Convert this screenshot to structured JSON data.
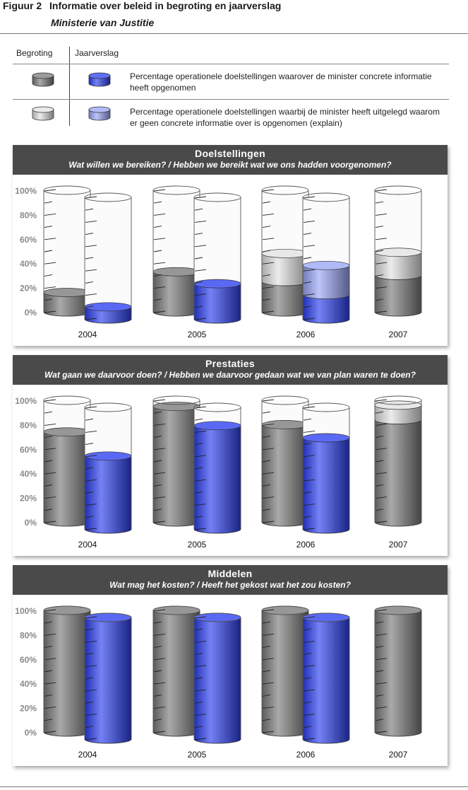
{
  "figure": {
    "number": "Figuur 2",
    "title": "Informatie over beleid in begroting en jaarverslag",
    "subtitle": "Ministerie van Justitie"
  },
  "legend": {
    "col_begroting": "Begroting",
    "col_jaarverslag": "Jaarverslag",
    "row1_text": "Percentage operationele doelstellingen waarover de minister concrete informatie heeft opgenomen",
    "row2_text": "Percentage operationele doelstellingen waarbij de minister heeft uitgelegd waarom er geen concrete informatie over is opgenomen (explain)"
  },
  "colors": {
    "begroting_concrete": "#7a7a7a",
    "begroting_explain": "#e2e2e2",
    "jaarverslag_concrete": "#2b3ff0",
    "jaarverslag_explain": "#9aa6f6",
    "header_bg": "#4a4a4a"
  },
  "chart_data": [
    {
      "type": "bar",
      "title": "Doelstellingen",
      "subtitle": "Wat willen we bereiken? / Hebben we bereikt wat we ons hadden voorgenomen?",
      "categories": [
        "2004",
        "2005",
        "2006",
        "2007"
      ],
      "yticks": [
        "0%",
        "20%",
        "40%",
        "60%",
        "80%",
        "100%"
      ],
      "ylim": [
        0,
        100
      ],
      "series": [
        {
          "name": "Begroting concreet",
          "values": [
            16,
            33,
            25,
            30
          ]
        },
        {
          "name": "Begroting explain",
          "values": [
            0,
            0,
            23,
            19
          ]
        },
        {
          "name": "Jaarverslag concreet",
          "values": [
            10,
            29,
            20,
            null
          ]
        },
        {
          "name": "Jaarverslag explain",
          "values": [
            0,
            0,
            24,
            null
          ]
        }
      ]
    },
    {
      "type": "bar",
      "title": "Prestaties",
      "subtitle": "Wat gaan we daarvoor doen? / Hebben we daarvoor gedaan wat we van plan waren te doen?",
      "categories": [
        "2004",
        "2005",
        "2006",
        "2007"
      ],
      "yticks": [
        "0%",
        "20%",
        "40%",
        "60%",
        "80%",
        "100%"
      ],
      "ylim": [
        0,
        100
      ],
      "series": [
        {
          "name": "Begroting concreet",
          "values": [
            74,
            95,
            80,
            84
          ]
        },
        {
          "name": "Begroting explain",
          "values": [
            0,
            0,
            0,
            12
          ]
        },
        {
          "name": "Jaarverslag concreet",
          "values": [
            60,
            85,
            75,
            null
          ]
        },
        {
          "name": "Jaarverslag explain",
          "values": [
            0,
            0,
            0,
            null
          ]
        }
      ]
    },
    {
      "type": "bar",
      "title": "Middelen",
      "subtitle": "Wat mag het kosten? / Heeft het gekost wat het zou kosten?",
      "categories": [
        "2004",
        "2005",
        "2006",
        "2007"
      ],
      "yticks": [
        "0%",
        "20%",
        "40%",
        "60%",
        "80%",
        "100%"
      ],
      "ylim": [
        0,
        100
      ],
      "series": [
        {
          "name": "Begroting concreet",
          "values": [
            100,
            100,
            100,
            100
          ]
        },
        {
          "name": "Begroting explain",
          "values": [
            0,
            0,
            0,
            0
          ]
        },
        {
          "name": "Jaarverslag concreet",
          "values": [
            100,
            100,
            100,
            null
          ]
        },
        {
          "name": "Jaarverslag explain",
          "values": [
            0,
            0,
            0,
            null
          ]
        }
      ]
    }
  ]
}
